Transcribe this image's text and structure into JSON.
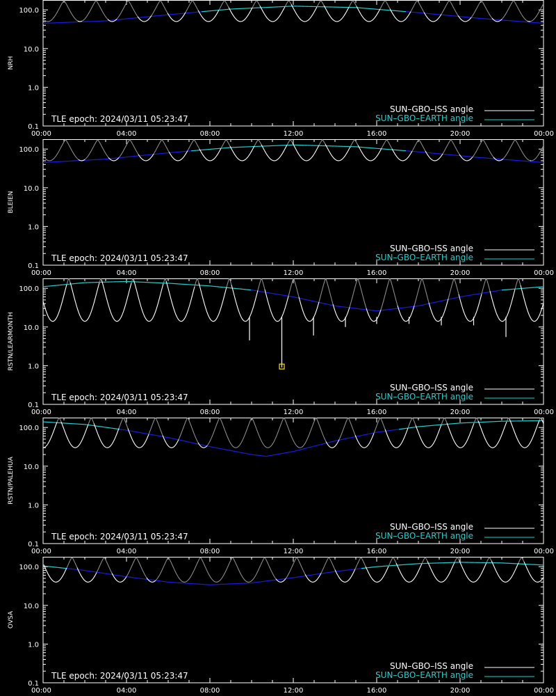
{
  "x_ticks": [
    "00:00",
    "04:00",
    "08:00",
    "12:00",
    "16:00",
    "20:00",
    "00:00"
  ],
  "y_ticks": [
    "0.1",
    "1.0",
    "10.0",
    "100.0"
  ],
  "legend": {
    "iss_label": "SUN–GBO–ISS angle",
    "earth_label": "SUN–GBO–EARTH angle"
  },
  "epoch_text": "TLE epoch: 2024/03/11 05:23:47",
  "colors": {
    "background": "#000000",
    "axes": "#ffffff",
    "iss_visible": "#ffffff",
    "iss_hidden": "#8a8a8a",
    "earth_above": "#20d0d0",
    "earth_below": "#1a1ae6",
    "marker": "#ffe000"
  },
  "chart_data": [
    {
      "type": "line",
      "ylabel": "NRH",
      "yscale": "log",
      "ylim": [
        0.1,
        180
      ],
      "xlim": [
        0,
        24
      ],
      "earth": {
        "x": [
          0,
          3,
          6,
          9,
          12,
          15,
          18,
          21,
          24
        ],
        "y": [
          45,
          52,
          75,
          105,
          125,
          115,
          85,
          60,
          45
        ]
      },
      "iss": {
        "period": 1.54,
        "phase": 0.35,
        "min_value": 50,
        "max_value": 175,
        "visible_above_earth": false
      },
      "spikes": [],
      "marker": null
    },
    {
      "type": "line",
      "ylabel": "BLEIEN",
      "yscale": "log",
      "ylim": [
        0.1,
        180
      ],
      "xlim": [
        0,
        24
      ],
      "earth": {
        "x": [
          0,
          3,
          6,
          9,
          12,
          15,
          18,
          21,
          24
        ],
        "y": [
          45,
          55,
          80,
          110,
          128,
          115,
          85,
          60,
          45
        ]
      },
      "iss": {
        "period": 1.54,
        "phase": 0.3,
        "min_value": 50,
        "max_value": 175,
        "visible_above_earth": false
      },
      "spikes": [],
      "marker": null
    },
    {
      "type": "line",
      "ylabel": "RSTN/LEARMONTH",
      "yscale": "log",
      "ylim": [
        0.1,
        180
      ],
      "xlim": [
        0,
        24
      ],
      "earth": {
        "x": [
          0,
          2,
          4,
          6,
          8,
          10,
          12,
          14,
          16,
          18,
          20,
          22,
          24
        ],
        "y": [
          110,
          140,
          150,
          135,
          115,
          90,
          60,
          35,
          26,
          35,
          60,
          90,
          110
        ]
      },
      "iss": {
        "period": 1.54,
        "phase": 0.2,
        "min_value": 14,
        "max_value": 180,
        "visible_above_earth": true
      },
      "spikes": [
        {
          "x": 9.9,
          "y": 4.5
        },
        {
          "x": 11.45,
          "y": 0.9
        },
        {
          "x": 12.97,
          "y": 6.0
        },
        {
          "x": 14.5,
          "y": 10.0
        },
        {
          "x": 16.0,
          "y": 12.0
        },
        {
          "x": 17.55,
          "y": 12.0
        },
        {
          "x": 19.1,
          "y": 11.0
        },
        {
          "x": 20.65,
          "y": 11.0
        },
        {
          "x": 22.2,
          "y": 5.5
        }
      ],
      "marker": {
        "x": 11.45,
        "y": 0.95
      }
    },
    {
      "type": "line",
      "ylabel": "RSTN/PALEHUA",
      "yscale": "log",
      "ylim": [
        0.1,
        180
      ],
      "xlim": [
        0,
        24
      ],
      "earth": {
        "x": [
          0,
          2,
          4,
          6,
          8,
          10,
          10.7,
          12,
          14,
          16,
          18,
          20,
          22,
          24
        ],
        "y": [
          140,
          120,
          85,
          55,
          32,
          20,
          18,
          24,
          45,
          75,
          105,
          130,
          145,
          150
        ]
      },
      "iss": {
        "period": 1.54,
        "phase": 0.5,
        "min_value": 30,
        "max_value": 180,
        "visible_above_earth": true
      },
      "spikes": [],
      "marker": null
    },
    {
      "type": "line",
      "ylabel": "OVSA",
      "yscale": "log",
      "ylim": [
        0.1,
        180
      ],
      "xlim": [
        0,
        24
      ],
      "earth": {
        "x": [
          0,
          2,
          4,
          6,
          8,
          10,
          12,
          14,
          16,
          18,
          20,
          22,
          24
        ],
        "y": [
          105,
          80,
          55,
          40,
          34,
          38,
          52,
          75,
          100,
          120,
          130,
          125,
          110
        ]
      },
      "iss": {
        "period": 1.54,
        "phase": 0.1,
        "min_value": 40,
        "max_value": 175,
        "visible_above_earth": true
      },
      "spikes": [],
      "marker": null
    }
  ]
}
